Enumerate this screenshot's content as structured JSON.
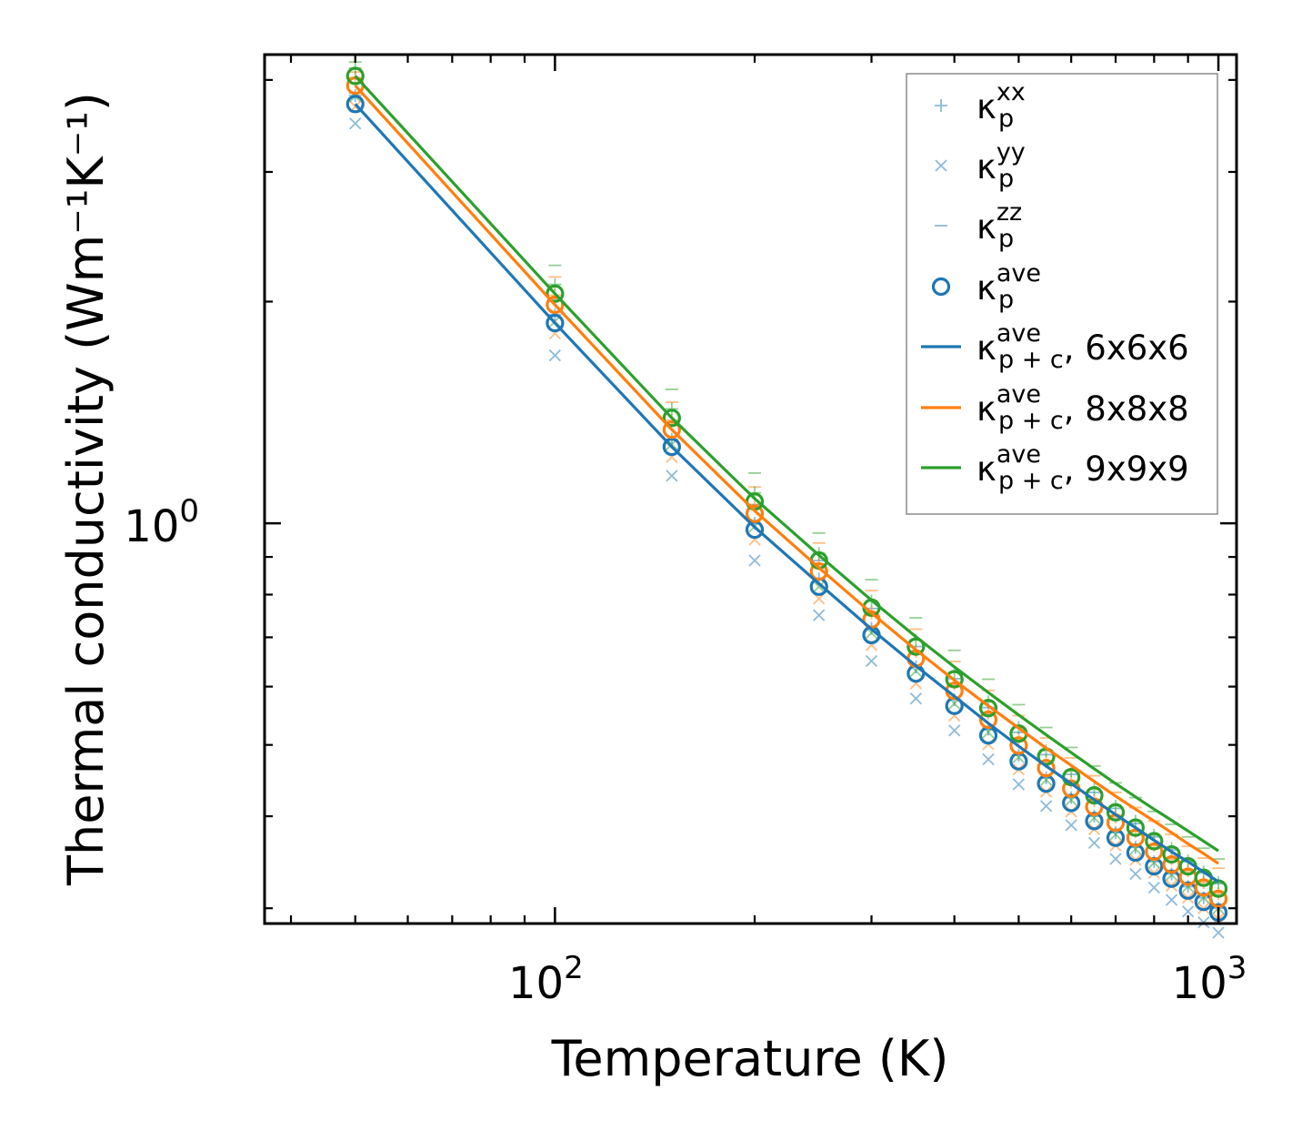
{
  "chart_data": {
    "type": "scatter",
    "title": "",
    "xlabel": "Temperature (K)",
    "ylabel": "Thermal conductivity (Wm⁻¹K⁻¹)",
    "xscale": "log",
    "yscale": "log",
    "xlim": [
      36.5,
      1065
    ],
    "ylim": [
      0.286,
      4.33
    ],
    "xticks": [
      {
        "base": "10",
        "exp": "2",
        "value": 100
      },
      {
        "base": "10",
        "exp": "3",
        "value": 1000
      }
    ],
    "yticks": [
      {
        "base": "10",
        "exp": "0",
        "value": 1
      }
    ],
    "colors": {
      "c6": "#1f77b4",
      "c8": "#ff7f0e",
      "c9": "#2ca02c"
    },
    "temperatures": [
      50,
      100,
      150,
      200,
      250,
      300,
      350,
      400,
      450,
      500,
      550,
      600,
      650,
      700,
      750,
      800,
      850,
      900,
      950,
      1000
    ],
    "series": [
      {
        "name": "6x6x6",
        "color": "#1f77b4",
        "kp_ave": [
          3.71,
          1.87,
          1.27,
          0.98,
          0.82,
          0.705,
          0.625,
          0.565,
          0.515,
          0.475,
          0.443,
          0.417,
          0.394,
          0.374,
          0.357,
          0.342,
          0.329,
          0.317,
          0.306,
          0.296
        ],
        "kp_xx": [
          3.81,
          1.92,
          1.3,
          1.0,
          0.84,
          0.72,
          0.638,
          0.576,
          0.525,
          0.484,
          0.451,
          0.424,
          0.4,
          0.38,
          0.363,
          0.347,
          0.334,
          0.321,
          0.31,
          0.3
        ],
        "kp_yy": [
          3.49,
          1.69,
          1.16,
          0.89,
          0.75,
          0.65,
          0.578,
          0.523,
          0.478,
          0.442,
          0.413,
          0.389,
          0.368,
          0.35,
          0.334,
          0.32,
          0.308,
          0.297,
          0.287,
          0.278
        ],
        "kp_zz": [
          3.84,
          2.02,
          1.37,
          1.06,
          0.89,
          0.766,
          0.68,
          0.615,
          0.562,
          0.52,
          0.485,
          0.456,
          0.431,
          0.41,
          0.391,
          0.375,
          0.36,
          0.347,
          0.335,
          0.324
        ],
        "kp_c_ave": [
          3.71,
          1.87,
          1.27,
          0.988,
          0.828,
          0.718,
          0.64,
          0.582,
          0.535,
          0.498,
          0.468,
          0.443,
          0.421,
          0.402,
          0.386,
          0.371,
          0.358,
          0.347,
          0.336,
          0.326
        ]
      },
      {
        "name": "8x8x8",
        "color": "#ff7f0e",
        "kp_ave": [
          3.93,
          1.98,
          1.34,
          1.03,
          0.86,
          0.74,
          0.655,
          0.592,
          0.541,
          0.499,
          0.465,
          0.436,
          0.412,
          0.392,
          0.374,
          0.358,
          0.344,
          0.331,
          0.32,
          0.309
        ],
        "kp_xx": [
          4.03,
          2.04,
          1.38,
          1.06,
          0.88,
          0.756,
          0.67,
          0.605,
          0.552,
          0.509,
          0.474,
          0.445,
          0.42,
          0.399,
          0.381,
          0.365,
          0.35,
          0.337,
          0.325,
          0.314
        ],
        "kp_yy": [
          3.68,
          1.81,
          1.23,
          0.95,
          0.79,
          0.683,
          0.606,
          0.548,
          0.501,
          0.463,
          0.432,
          0.406,
          0.384,
          0.365,
          0.349,
          0.335,
          0.322,
          0.31,
          0.3,
          0.29
        ],
        "kp_zz": [
          4.1,
          2.16,
          1.46,
          1.12,
          0.94,
          0.81,
          0.718,
          0.649,
          0.593,
          0.548,
          0.511,
          0.48,
          0.454,
          0.431,
          0.411,
          0.394,
          0.378,
          0.364,
          0.351,
          0.34
        ],
        "kp_c_ave": [
          3.93,
          1.98,
          1.34,
          1.04,
          0.87,
          0.755,
          0.673,
          0.612,
          0.565,
          0.527,
          0.495,
          0.469,
          0.446,
          0.426,
          0.409,
          0.394,
          0.38,
          0.367,
          0.356,
          0.345
        ]
      },
      {
        "name": "9x9x9",
        "color": "#2ca02c",
        "kp_ave": [
          4.05,
          2.05,
          1.39,
          1.07,
          0.89,
          0.768,
          0.68,
          0.614,
          0.561,
          0.518,
          0.482,
          0.452,
          0.427,
          0.405,
          0.386,
          0.37,
          0.355,
          0.342,
          0.33,
          0.319
        ],
        "kp_xx": [
          4.15,
          2.11,
          1.43,
          1.1,
          0.91,
          0.784,
          0.694,
          0.627,
          0.572,
          0.528,
          0.491,
          0.461,
          0.435,
          0.413,
          0.394,
          0.377,
          0.362,
          0.348,
          0.336,
          0.325
        ],
        "kp_yy": [
          3.8,
          1.88,
          1.28,
          0.99,
          0.82,
          0.71,
          0.63,
          0.569,
          0.52,
          0.481,
          0.448,
          0.421,
          0.398,
          0.378,
          0.361,
          0.346,
          0.333,
          0.321,
          0.31,
          0.3
        ],
        "kp_zz": [
          4.23,
          2.24,
          1.52,
          1.17,
          0.97,
          0.838,
          0.744,
          0.672,
          0.614,
          0.567,
          0.528,
          0.496,
          0.468,
          0.444,
          0.424,
          0.406,
          0.39,
          0.375,
          0.362,
          0.35
        ],
        "kp_c_ave": [
          4.05,
          2.05,
          1.39,
          1.08,
          0.905,
          0.786,
          0.701,
          0.638,
          0.589,
          0.549,
          0.516,
          0.488,
          0.464,
          0.443,
          0.425,
          0.409,
          0.395,
          0.382,
          0.37,
          0.359
        ]
      }
    ],
    "legend": {
      "position": "upper right",
      "entries": [
        {
          "symbol": "κ",
          "sub": "p",
          "sup": "xx",
          "suffix": "",
          "marker": "plus"
        },
        {
          "symbol": "κ",
          "sub": "p",
          "sup": "yy",
          "suffix": "",
          "marker": "x"
        },
        {
          "symbol": "κ",
          "sub": "p",
          "sup": "zz",
          "suffix": "",
          "marker": "hline"
        },
        {
          "symbol": "κ",
          "sub": "p",
          "sup": "ave",
          "suffix": "",
          "marker": "circle"
        },
        {
          "symbol": "κ",
          "sub": "p + c",
          "sup": "ave",
          "suffix": ", 6x6x6",
          "marker": "line"
        },
        {
          "symbol": "κ",
          "sub": "p + c",
          "sup": "ave",
          "suffix": ", 8x8x8",
          "marker": "line"
        },
        {
          "symbol": "κ",
          "sub": "p + c",
          "sup": "ave",
          "suffix": ", 9x9x9",
          "marker": "line"
        }
      ]
    }
  }
}
